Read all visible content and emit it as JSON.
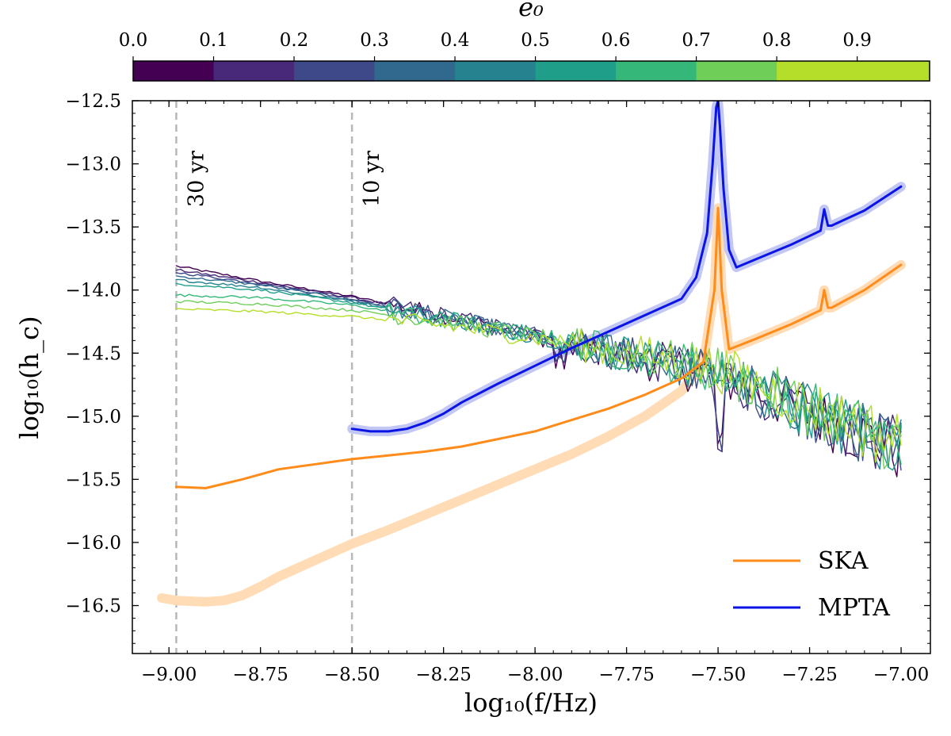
{
  "chart_data": {
    "type": "line",
    "xlabel": "log₁₀(f/Hz)",
    "ylabel": "log₁₀(h_c)",
    "xlim": [
      -9.1,
      -6.92
    ],
    "ylim": [
      -16.88,
      -12.5
    ],
    "xticks": [
      -9.0,
      -8.75,
      -8.5,
      -8.25,
      -8.0,
      -7.75,
      -7.5,
      -7.25,
      -7.0
    ],
    "xtick_labels": [
      "−9.00",
      "−8.75",
      "−8.50",
      "−8.25",
      "−8.00",
      "−7.75",
      "−7.50",
      "−7.25",
      "−7.00"
    ],
    "yticks": [
      -12.5,
      -13.0,
      -13.5,
      -14.0,
      -14.5,
      -15.0,
      -15.5,
      -16.0,
      -16.5
    ],
    "ytick_labels": [
      "−12.5",
      "−13.0",
      "−13.5",
      "−14.0",
      "−14.5",
      "−15.0",
      "−15.5",
      "−16.0",
      "−16.5"
    ],
    "vlines": [
      {
        "x": -8.98,
        "label": "30 yr"
      },
      {
        "x": -8.5,
        "label": "10 yr"
      }
    ],
    "colorbar": {
      "label": "e₀",
      "ticks": [
        "0.0",
        "0.1",
        "0.2",
        "0.3",
        "0.4",
        "0.5",
        "0.6",
        "0.7",
        "0.8",
        "0.9"
      ],
      "colors": [
        "#440154",
        "#482878",
        "#3e4989",
        "#31688e",
        "#26828e",
        "#1f9e89",
        "#35b779",
        "#6ece58",
        "#b5de2b"
      ]
    },
    "legend": [
      {
        "name": "SKA",
        "color": "#ff8c1a"
      },
      {
        "name": "MPTA",
        "color": "#0a14e6"
      }
    ],
    "series": [
      {
        "name": "SKA",
        "color": "#ff8c1a",
        "x": [
          -8.98,
          -8.9,
          -8.8,
          -8.7,
          -8.6,
          -8.5,
          -8.4,
          -8.3,
          -8.2,
          -8.1,
          -8.0,
          -7.9,
          -7.8,
          -7.7,
          -7.6,
          -7.54,
          -7.51,
          -7.5,
          -7.49,
          -7.47,
          -7.4,
          -7.3,
          -7.22,
          -7.21,
          -7.2,
          -7.19,
          -7.1,
          -7.0
        ],
        "y": [
          -15.56,
          -15.57,
          -15.5,
          -15.42,
          -15.38,
          -15.34,
          -15.31,
          -15.28,
          -15.24,
          -15.18,
          -15.12,
          -15.03,
          -14.94,
          -14.83,
          -14.7,
          -14.57,
          -14.0,
          -13.35,
          -14.0,
          -14.47,
          -14.39,
          -14.27,
          -14.16,
          -14.0,
          -14.14,
          -14.14,
          -14.0,
          -13.8
        ]
      },
      {
        "name": "SKA (expected)",
        "color": "#ffdcb5",
        "width": 12,
        "x": [
          -9.02,
          -8.98,
          -8.9,
          -8.85,
          -8.8,
          -8.75,
          -8.7,
          -8.6,
          -8.5,
          -8.4,
          -8.3,
          -8.2,
          -8.1,
          -8.0,
          -7.9,
          -7.8,
          -7.7,
          -7.6,
          -7.54,
          -7.51,
          -7.5,
          -7.49,
          -7.47,
          -7.4,
          -7.3,
          -7.22,
          -7.21,
          -7.2,
          -7.19,
          -7.1,
          -7.0
        ],
        "y": [
          -16.44,
          -16.46,
          -16.47,
          -16.46,
          -16.42,
          -16.35,
          -16.27,
          -16.14,
          -16.01,
          -15.9,
          -15.78,
          -15.66,
          -15.54,
          -15.42,
          -15.3,
          -15.16,
          -15.0,
          -14.8,
          -14.58,
          -14.0,
          -13.35,
          -14.0,
          -14.47,
          -14.39,
          -14.27,
          -14.16,
          -14.0,
          -14.14,
          -14.14,
          -14.0,
          -13.8
        ]
      },
      {
        "name": "MPTA",
        "color": "#0a14e6",
        "x": [
          -8.5,
          -8.45,
          -8.4,
          -8.35,
          -8.3,
          -8.25,
          -8.2,
          -8.1,
          -8.0,
          -7.9,
          -7.8,
          -7.7,
          -7.6,
          -7.56,
          -7.53,
          -7.515,
          -7.505,
          -7.5,
          -7.495,
          -7.485,
          -7.47,
          -7.45,
          -7.4,
          -7.3,
          -7.22,
          -7.21,
          -7.2,
          -7.19,
          -7.1,
          -7.0
        ],
        "y": [
          -15.1,
          -15.12,
          -15.12,
          -15.1,
          -15.05,
          -14.98,
          -14.89,
          -14.74,
          -14.6,
          -14.46,
          -14.33,
          -14.2,
          -14.07,
          -13.9,
          -13.55,
          -13.0,
          -12.55,
          -12.5,
          -12.7,
          -13.2,
          -13.68,
          -13.82,
          -13.76,
          -13.64,
          -13.53,
          -13.36,
          -13.49,
          -13.49,
          -13.37,
          -13.18
        ]
      },
      {
        "name": "MPTA (expected)",
        "color": "#c3c7f3",
        "width": 12,
        "x": [
          -8.5,
          -8.45,
          -8.4,
          -8.35,
          -8.3,
          -8.25,
          -8.2,
          -8.1,
          -8.0,
          -7.9,
          -7.8,
          -7.7,
          -7.6,
          -7.56,
          -7.53,
          -7.515,
          -7.505,
          -7.5,
          -7.495,
          -7.485,
          -7.47,
          -7.45,
          -7.4,
          -7.3,
          -7.22,
          -7.21,
          -7.2,
          -7.19,
          -7.1,
          -7.0
        ],
        "y": [
          -15.1,
          -15.12,
          -15.12,
          -15.1,
          -15.05,
          -14.98,
          -14.89,
          -14.74,
          -14.6,
          -14.46,
          -14.33,
          -14.2,
          -14.07,
          -13.9,
          -13.55,
          -13.0,
          -12.55,
          -12.5,
          -12.7,
          -13.2,
          -13.68,
          -13.82,
          -13.76,
          -13.64,
          -13.53,
          -13.36,
          -13.49,
          -13.49,
          -13.37,
          -13.18
        ]
      },
      {
        "name": "e0 = 0.0",
        "color": "#440154",
        "x": [
          -8.98,
          -8.75,
          -8.5,
          -8.25,
          -8.0,
          -7.75,
          -7.5,
          -7.25,
          -7.0
        ],
        "y": [
          -13.81,
          -13.93,
          -14.05,
          -14.2,
          -14.37,
          -14.52,
          -14.68,
          -14.98,
          -15.28
        ]
      },
      {
        "name": "e0 = 0.1",
        "color": "#482878",
        "x": [
          -8.98,
          -8.75,
          -8.5,
          -8.25,
          -8.0,
          -7.75,
          -7.5,
          -7.25,
          -7.0
        ],
        "y": [
          -13.84,
          -13.94,
          -14.06,
          -14.2,
          -14.36,
          -14.52,
          -14.67,
          -14.97,
          -15.27
        ]
      },
      {
        "name": "e0 = 0.2",
        "color": "#3e4989",
        "x": [
          -8.98,
          -8.75,
          -8.5,
          -8.25,
          -8.0,
          -7.75,
          -7.5,
          -7.25,
          -7.0
        ],
        "y": [
          -13.86,
          -13.95,
          -14.07,
          -14.21,
          -14.36,
          -14.51,
          -14.67,
          -14.97,
          -15.26
        ]
      },
      {
        "name": "e0 = 0.3",
        "color": "#31688e",
        "x": [
          -8.98,
          -8.75,
          -8.5,
          -8.25,
          -8.0,
          -7.75,
          -7.5,
          -7.25,
          -7.0
        ],
        "y": [
          -13.89,
          -13.96,
          -14.08,
          -14.22,
          -14.36,
          -14.51,
          -14.66,
          -14.96,
          -15.26
        ]
      },
      {
        "name": "e0 = 0.4",
        "color": "#26828e",
        "x": [
          -8.98,
          -8.75,
          -8.5,
          -8.25,
          -8.0,
          -7.75,
          -7.5,
          -7.25,
          -7.0
        ],
        "y": [
          -13.92,
          -13.98,
          -14.09,
          -14.22,
          -14.36,
          -14.5,
          -14.66,
          -14.96,
          -15.25
        ]
      },
      {
        "name": "e0 = 0.5",
        "color": "#1f9e89",
        "x": [
          -8.98,
          -8.75,
          -8.5,
          -8.25,
          -8.0,
          -7.75,
          -7.5,
          -7.25,
          -7.0
        ],
        "y": [
          -13.95,
          -14.0,
          -14.1,
          -14.23,
          -14.36,
          -14.5,
          -14.65,
          -14.95,
          -15.24
        ]
      },
      {
        "name": "e0 = 0.6",
        "color": "#35b779",
        "x": [
          -8.98,
          -8.75,
          -8.5,
          -8.25,
          -8.0,
          -7.75,
          -7.5,
          -7.25,
          -7.0
        ],
        "y": [
          -14.04,
          -14.06,
          -14.12,
          -14.24,
          -14.36,
          -14.5,
          -14.64,
          -14.94,
          -15.23
        ]
      },
      {
        "name": "e0 = 0.7",
        "color": "#6ece58",
        "x": [
          -8.98,
          -8.75,
          -8.5,
          -8.25,
          -8.0,
          -7.75,
          -7.5,
          -7.25,
          -7.0
        ],
        "y": [
          -14.09,
          -14.11,
          -14.16,
          -14.25,
          -14.37,
          -14.49,
          -14.63,
          -14.93,
          -15.22
        ]
      },
      {
        "name": "e0 = 0.8",
        "color": "#b5de2b",
        "x": [
          -8.98,
          -8.75,
          -8.5,
          -8.25,
          -8.0,
          -7.75,
          -7.5,
          -7.25,
          -7.0
        ],
        "y": [
          -14.15,
          -14.17,
          -14.21,
          -14.28,
          -14.38,
          -14.49,
          -14.62,
          -14.92,
          -15.21
        ]
      }
    ]
  }
}
